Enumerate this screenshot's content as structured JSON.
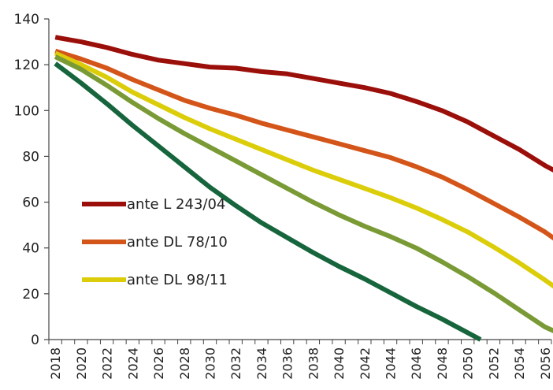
{
  "chart_data": {
    "type": "line",
    "title": "",
    "xlabel": "",
    "ylabel": "",
    "ylim": [
      0,
      140
    ],
    "yticks": [
      "0",
      "20",
      "40",
      "60",
      "80",
      "100",
      "120",
      "140"
    ],
    "xlim": [
      2018,
      2056
    ],
    "xticks": [
      "2018",
      "2020",
      "2022",
      "2024",
      "2026",
      "2028",
      "2030",
      "2032",
      "2034",
      "2036",
      "2038",
      "2040",
      "2042",
      "2044",
      "2046",
      "2048",
      "2050",
      "2052",
      "2054",
      "2056"
    ],
    "grid": false,
    "legend_position": "left",
    "series": [
      {
        "name": "ante L 243/04",
        "color": "#9b0f0a",
        "in_legend": true,
        "points": [
          [
            2018,
            132
          ],
          [
            2020,
            130
          ],
          [
            2022,
            127.5
          ],
          [
            2024,
            124.5
          ],
          [
            2026,
            122
          ],
          [
            2028,
            120.5
          ],
          [
            2030,
            119
          ],
          [
            2032,
            118.5
          ],
          [
            2034,
            117
          ],
          [
            2036,
            116
          ],
          [
            2038,
            114
          ],
          [
            2040,
            112
          ],
          [
            2042,
            110
          ],
          [
            2044,
            107.5
          ],
          [
            2046,
            104
          ],
          [
            2048,
            100
          ],
          [
            2050,
            95
          ],
          [
            2052,
            89
          ],
          [
            2054,
            83
          ],
          [
            2056,
            76
          ],
          [
            2057,
            73
          ]
        ]
      },
      {
        "name": "ante DL 78/10",
        "color": "#d45519",
        "in_legend": true,
        "points": [
          [
            2018,
            126
          ],
          [
            2020,
            122.5
          ],
          [
            2022,
            118.5
          ],
          [
            2024,
            113.5
          ],
          [
            2026,
            109
          ],
          [
            2028,
            104.5
          ],
          [
            2030,
            101
          ],
          [
            2032,
            98
          ],
          [
            2034,
            94.5
          ],
          [
            2036,
            91.5
          ],
          [
            2038,
            88.5
          ],
          [
            2040,
            85.5
          ],
          [
            2042,
            82.5
          ],
          [
            2044,
            79.5
          ],
          [
            2046,
            75.5
          ],
          [
            2048,
            71
          ],
          [
            2050,
            65.5
          ],
          [
            2052,
            59.5
          ],
          [
            2054,
            53.5
          ],
          [
            2056,
            47
          ],
          [
            2057,
            43
          ]
        ]
      },
      {
        "name": "ante DL 98/11",
        "color": "#dccd0a",
        "in_legend": true,
        "points": [
          [
            2018,
            125
          ],
          [
            2020,
            120
          ],
          [
            2022,
            114.5
          ],
          [
            2024,
            108
          ],
          [
            2026,
            102.5
          ],
          [
            2028,
            97
          ],
          [
            2030,
            92
          ],
          [
            2032,
            87.5
          ],
          [
            2034,
            83
          ],
          [
            2036,
            78.5
          ],
          [
            2038,
            74
          ],
          [
            2040,
            70
          ],
          [
            2042,
            66
          ],
          [
            2044,
            62
          ],
          [
            2046,
            57.5
          ],
          [
            2048,
            52.5
          ],
          [
            2050,
            47
          ],
          [
            2052,
            40.5
          ],
          [
            2054,
            33.5
          ],
          [
            2056,
            26
          ],
          [
            2057,
            22
          ]
        ]
      },
      {
        "name": "",
        "color": "#799a35",
        "in_legend": false,
        "points": [
          [
            2018,
            123.5
          ],
          [
            2020,
            118
          ],
          [
            2022,
            111
          ],
          [
            2024,
            103.5
          ],
          [
            2026,
            96.5
          ],
          [
            2028,
            90
          ],
          [
            2030,
            84
          ],
          [
            2032,
            78
          ],
          [
            2034,
            72
          ],
          [
            2036,
            66
          ],
          [
            2038,
            60
          ],
          [
            2040,
            54.5
          ],
          [
            2042,
            49.5
          ],
          [
            2044,
            45
          ],
          [
            2046,
            40
          ],
          [
            2048,
            34
          ],
          [
            2050,
            27.5
          ],
          [
            2052,
            20.5
          ],
          [
            2054,
            13
          ],
          [
            2056,
            5.5
          ],
          [
            2057,
            3
          ]
        ]
      },
      {
        "name": "",
        "color": "#16653c",
        "in_legend": false,
        "points": [
          [
            2018,
            120.5
          ],
          [
            2020,
            112
          ],
          [
            2022,
            103
          ],
          [
            2024,
            93.5
          ],
          [
            2026,
            84.5
          ],
          [
            2028,
            75.5
          ],
          [
            2030,
            66.5
          ],
          [
            2032,
            58.5
          ],
          [
            2034,
            51
          ],
          [
            2036,
            44.5
          ],
          [
            2038,
            38
          ],
          [
            2040,
            32
          ],
          [
            2042,
            26.5
          ],
          [
            2044,
            20.5
          ],
          [
            2046,
            14.5
          ],
          [
            2048,
            9
          ],
          [
            2050,
            3
          ],
          [
            2051,
            0
          ]
        ]
      }
    ]
  }
}
